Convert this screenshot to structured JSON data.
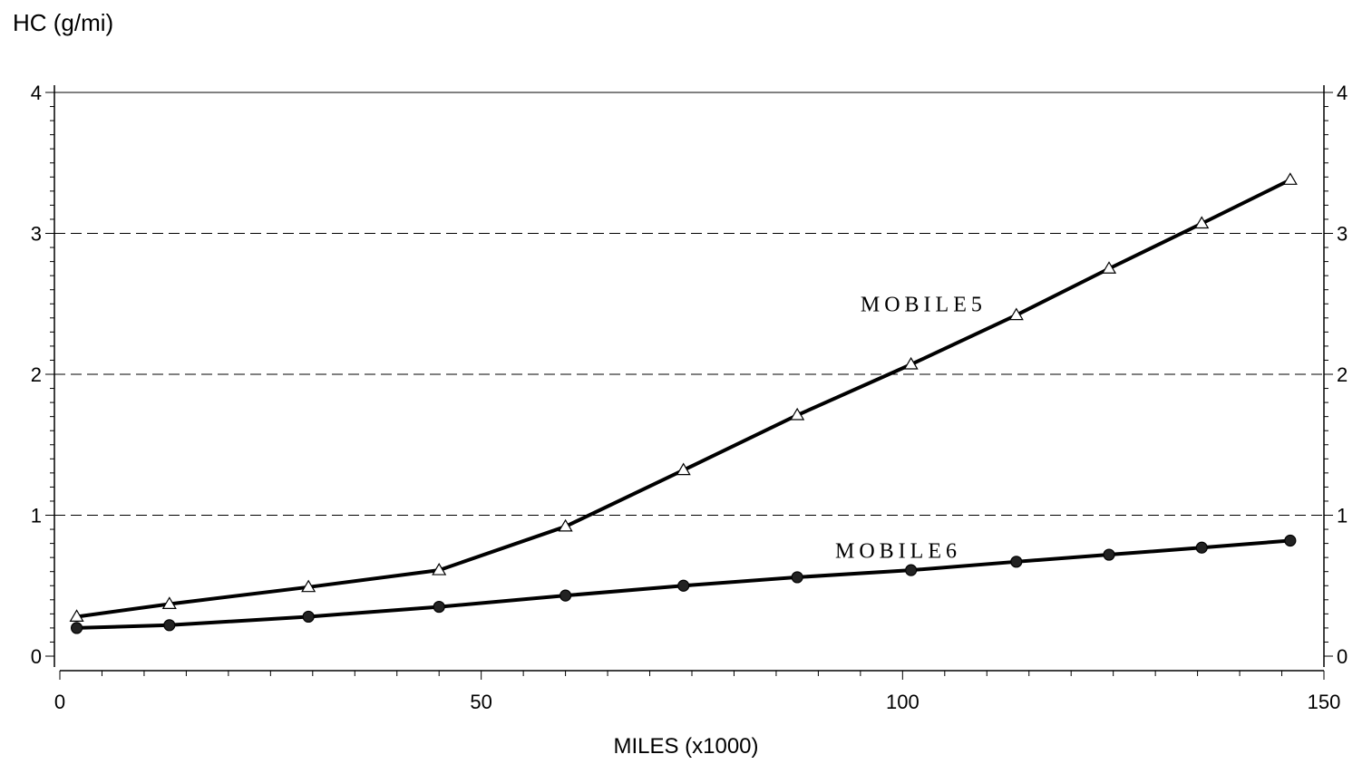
{
  "chart_data": {
    "type": "line",
    "ylabel": "HC  (g/mi)",
    "xlabel": "MILES  (x1000)",
    "xlim": [
      0,
      150
    ],
    "ylim": [
      0,
      4
    ],
    "xticks": [
      0,
      50,
      100,
      150
    ],
    "yticks": [
      0,
      1,
      2,
      3,
      4
    ],
    "grid": "horizontal dashed",
    "right_axis": true,
    "series": [
      {
        "name": "MOBILE5",
        "marker": "triangle",
        "label": {
          "x": 95,
          "y": 2.5
        },
        "x": [
          2,
          13,
          29.5,
          45,
          60,
          74,
          87.5,
          101,
          113.5,
          124.5,
          135.5,
          146
        ],
        "y": [
          0.28,
          0.37,
          0.49,
          0.61,
          0.92,
          1.32,
          1.71,
          2.07,
          2.42,
          2.75,
          3.07,
          3.38
        ]
      },
      {
        "name": "MOBILE6",
        "marker": "circle",
        "label": {
          "x": 92,
          "y": 0.75
        },
        "x": [
          2,
          13,
          29.5,
          45,
          60,
          74,
          87.5,
          101,
          113.5,
          124.5,
          135.5,
          146
        ],
        "y": [
          0.2,
          0.22,
          0.28,
          0.35,
          0.43,
          0.5,
          0.56,
          0.61,
          0.67,
          0.72,
          0.77,
          0.82
        ]
      }
    ]
  }
}
